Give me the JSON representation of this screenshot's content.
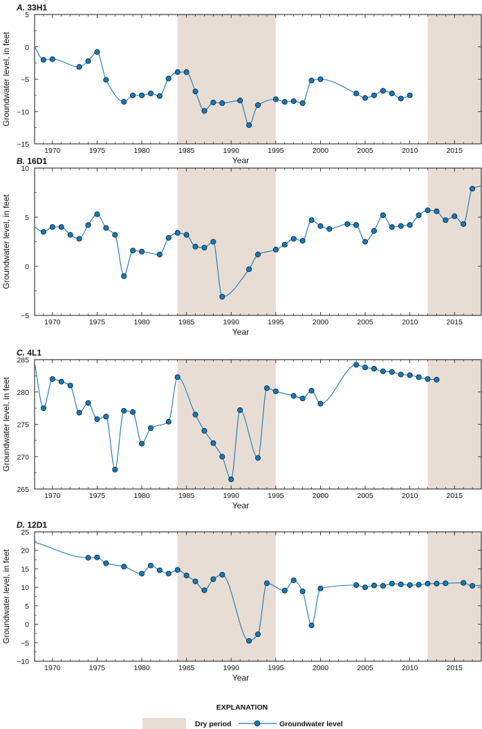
{
  "colors": {
    "dry_period": "#e8ddd4",
    "line": "#1a78b4",
    "marker_fill": "#1a78b4",
    "marker_edge": "#0b2a44"
  },
  "chart_data": [
    {
      "type": "line",
      "letter": "A.",
      "title": "33H1",
      "xlabel": "Year",
      "ylabel": "Groundwater level, in feet",
      "xlim": [
        1968,
        2018
      ],
      "ylim": [
        -15,
        5
      ],
      "xticks": [
        1970,
        1975,
        1980,
        1985,
        1990,
        1995,
        2000,
        2005,
        2010,
        2015
      ],
      "yticks": [
        5,
        0,
        -5,
        -10,
        -15
      ],
      "dry_periods": [
        [
          1984,
          1995
        ],
        [
          2012,
          2018
        ]
      ],
      "start": [
        1968,
        0
      ],
      "series": [
        {
          "x": [
            1969,
            1970,
            1973,
            1974,
            1975,
            1976,
            1978,
            1979,
            1980,
            1981,
            1982,
            1983,
            1984,
            1985,
            1986,
            1987,
            1988,
            1989,
            1991,
            1992,
            1993,
            1995,
            1996,
            1997,
            1998,
            1999,
            2000,
            2004,
            2005,
            2006,
            2007,
            2008,
            2009,
            2010
          ],
          "y": [
            -2.0,
            -1.9,
            -3.1,
            -2.2,
            -0.8,
            -5.1,
            -8.5,
            -7.5,
            -7.5,
            -7.2,
            -7.6,
            -4.9,
            -3.9,
            -3.9,
            -6.9,
            -9.9,
            -8.6,
            -8.7,
            -8.3,
            -12.1,
            -9.0,
            -8.1,
            -8.5,
            -8.4,
            -8.7,
            -5.2,
            -5.0,
            -7.2,
            -7.9,
            -7.5,
            -6.8,
            -7.2,
            -8.0,
            -7.5
          ]
        }
      ]
    },
    {
      "type": "line",
      "letter": "B.",
      "title": "16D1",
      "xlabel": "Year",
      "ylabel": "Groundwater level, in feet",
      "xlim": [
        1968,
        2018
      ],
      "ylim": [
        -5,
        10
      ],
      "xticks": [
        1970,
        1975,
        1980,
        1985,
        1990,
        1995,
        2000,
        2005,
        2010,
        2015
      ],
      "yticks": [
        10,
        5,
        0,
        -5
      ],
      "dry_periods": [
        [
          1984,
          1995
        ],
        [
          2012,
          2018
        ]
      ],
      "start": [
        1968,
        4.0
      ],
      "end": [
        2018,
        8.2
      ],
      "series": [
        {
          "x": [
            1969,
            1970,
            1971,
            1972,
            1973,
            1974,
            1975,
            1976,
            1977,
            1978,
            1979,
            1980,
            1982,
            1983,
            1984,
            1985,
            1986,
            1987,
            1988,
            1989,
            1992,
            1993,
            1995,
            1996,
            1997,
            1998,
            1999,
            2000,
            2001,
            2003,
            2004,
            2005,
            2006,
            2007,
            2008,
            2009,
            2010,
            2011,
            2012,
            2013,
            2014,
            2015,
            2016,
            2017
          ],
          "y": [
            3.5,
            4.0,
            4.0,
            3.2,
            2.8,
            4.2,
            5.3,
            3.9,
            3.2,
            -1.0,
            1.6,
            1.5,
            1.2,
            2.9,
            3.4,
            3.2,
            2.0,
            1.9,
            2.5,
            -3.1,
            -0.3,
            1.2,
            1.7,
            2.2,
            2.8,
            2.6,
            4.7,
            4.1,
            3.8,
            4.3,
            4.2,
            2.5,
            3.6,
            5.2,
            4.0,
            4.1,
            4.2,
            5.2,
            5.7,
            5.6,
            4.7,
            5.1,
            4.3,
            7.9
          ]
        }
      ]
    },
    {
      "type": "line",
      "letter": "C.",
      "title": "4L1",
      "xlabel": "Year",
      "ylabel": "Groundwater level, in feet",
      "xlim": [
        1968,
        2018
      ],
      "ylim": [
        265,
        285
      ],
      "xticks": [
        1970,
        1975,
        1980,
        1985,
        1990,
        1995,
        2000,
        2005,
        2010,
        2015
      ],
      "yticks": [
        285,
        280,
        275,
        270,
        265
      ],
      "dry_periods": [
        [
          1984,
          1995
        ],
        [
          2012,
          2018
        ]
      ],
      "start": [
        1968,
        284.5
      ],
      "series": [
        {
          "x": [
            1969,
            1970,
            1971,
            1972,
            1973,
            1974,
            1975,
            1976,
            1977,
            1978,
            1979,
            1980,
            1981,
            1983,
            1984,
            1986,
            1987,
            1988,
            1989,
            1990,
            1991,
            1993,
            1994,
            1995,
            1997,
            1998,
            1999,
            2000,
            2004,
            2005,
            2006,
            2007,
            2008,
            2009,
            2010,
            2011,
            2012,
            2013
          ],
          "y": [
            277.5,
            282.0,
            281.6,
            281.0,
            276.8,
            278.3,
            275.8,
            276.2,
            268.0,
            277.1,
            276.9,
            272.0,
            274.4,
            275.4,
            282.3,
            276.5,
            274.0,
            272.1,
            270.0,
            266.5,
            277.2,
            269.8,
            280.6,
            280.1,
            279.4,
            279.0,
            280.2,
            278.2,
            284.2,
            283.8,
            283.6,
            283.2,
            283.1,
            282.7,
            282.6,
            282.3,
            282.0,
            281.9
          ]
        }
      ]
    },
    {
      "type": "line",
      "letter": "D.",
      "title": "12D1",
      "xlabel": "Year",
      "ylabel": "Groundwater level, in feet",
      "xlim": [
        1968,
        2018
      ],
      "ylim": [
        -10,
        25
      ],
      "xticks": [
        1970,
        1975,
        1980,
        1985,
        1990,
        1995,
        2000,
        2005,
        2010,
        2015
      ],
      "yticks": [
        25,
        20,
        15,
        10,
        5,
        0,
        -5,
        -10
      ],
      "dry_periods": [
        [
          1984,
          1995
        ],
        [
          2012,
          2018
        ]
      ],
      "start": [
        1968,
        22.2
      ],
      "end": [
        2018,
        10.6
      ],
      "series": [
        {
          "x": [
            1974,
            1975,
            1976,
            1978,
            1980,
            1981,
            1982,
            1983,
            1984,
            1985,
            1986,
            1987,
            1988,
            1989,
            1992,
            1993,
            1994,
            1996,
            1997,
            1998,
            1999,
            2000,
            2004,
            2005,
            2006,
            2007,
            2008,
            2009,
            2010,
            2011,
            2012,
            2013,
            2014,
            2016,
            2017
          ],
          "y": [
            18.0,
            18.1,
            16.5,
            15.6,
            13.7,
            15.9,
            14.6,
            13.7,
            14.7,
            13.2,
            11.6,
            9.2,
            12.2,
            13.4,
            -4.5,
            -2.7,
            11.1,
            9.1,
            11.9,
            8.9,
            -0.3,
            9.7,
            10.6,
            10.0,
            10.5,
            10.4,
            11.0,
            10.8,
            10.6,
            10.7,
            11.0,
            11.0,
            11.1,
            11.2,
            10.4
          ]
        }
      ]
    }
  ],
  "explanation": {
    "title": "EXPLANATION",
    "dry_label": "Dry period",
    "line_label": "Groundwater level"
  }
}
